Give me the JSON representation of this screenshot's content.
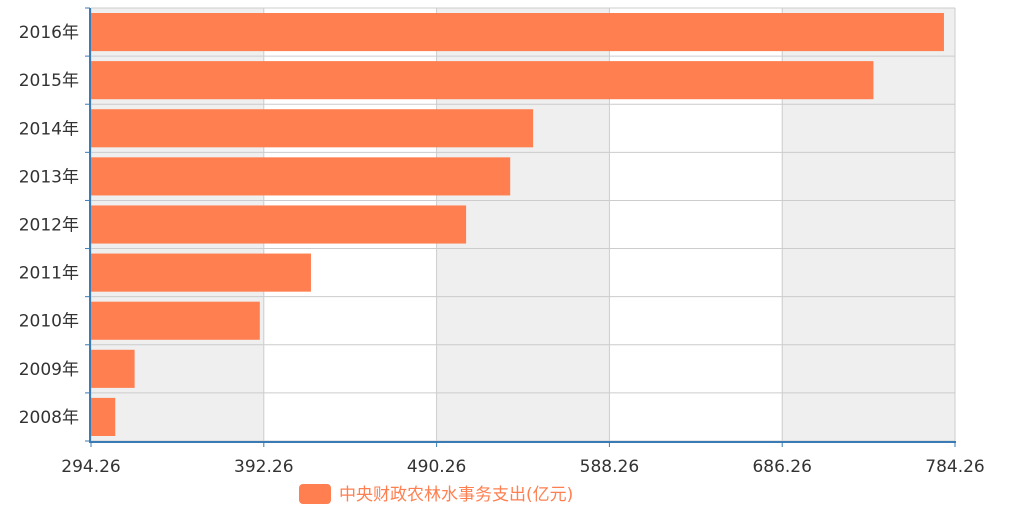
{
  "chart_data": {
    "type": "bar",
    "orientation": "horizontal",
    "categories": [
      "2016年",
      "2015年",
      "2014年",
      "2013年",
      "2012年",
      "2011年",
      "2010年",
      "2009年",
      "2008年"
    ],
    "series": [
      {
        "name": "中央财政农林水事务支出(亿元)",
        "values": [
          778,
          738,
          545,
          532,
          507,
          419,
          390,
          319,
          308
        ],
        "color": "#ff7f50"
      }
    ],
    "xlim": [
      294.26,
      784.26
    ],
    "xticks": [
      "294.26",
      "392.26",
      "490.26",
      "588.26",
      "686.26",
      "784.26"
    ],
    "grid": true,
    "band_colors": [
      "#efefef",
      "#ffffff"
    ],
    "axis_color": "#3a7ab5",
    "legend_position": "bottom-center"
  }
}
